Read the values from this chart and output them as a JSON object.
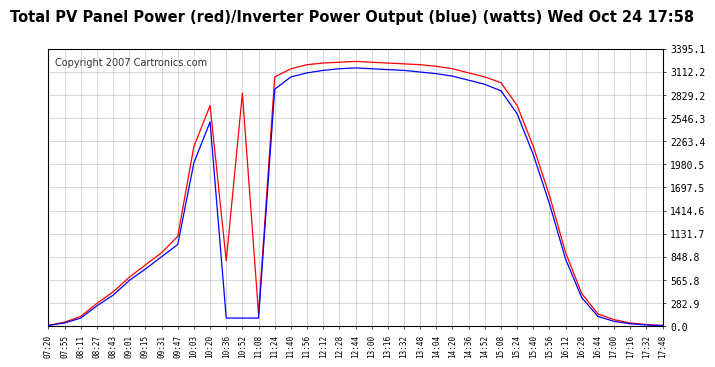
{
  "title": "Total PV Panel Power (red)/Inverter Power Output (blue) (watts) Wed Oct 24 17:58",
  "copyright": "Copyright 2007 Cartronics.com",
  "ylabel_values": [
    0.0,
    282.9,
    565.8,
    848.8,
    1131.7,
    1414.6,
    1697.5,
    1980.5,
    2263.4,
    2546.3,
    2829.2,
    3112.2,
    3395.1
  ],
  "ymax": 3395.1,
  "ymin": 0.0,
  "x_labels": [
    "07:20",
    "07:55",
    "08:11",
    "08:27",
    "08:43",
    "09:01",
    "09:15",
    "09:31",
    "09:47",
    "10:03",
    "10:20",
    "10:36",
    "10:52",
    "11:08",
    "11:24",
    "11:40",
    "11:56",
    "12:12",
    "12:28",
    "12:44",
    "13:00",
    "13:16",
    "13:32",
    "13:48",
    "14:04",
    "14:20",
    "14:36",
    "14:52",
    "15:08",
    "15:24",
    "15:40",
    "15:56",
    "16:12",
    "16:28",
    "16:44",
    "17:00",
    "17:16",
    "17:32",
    "17:48"
  ],
  "background_color": "#ffffff",
  "plot_bg_color": "#ffffff",
  "grid_color": "#aaaaaa",
  "red_color": "#ff0000",
  "blue_color": "#0000ff",
  "title_fontsize": 10.5,
  "copyright_fontsize": 7,
  "pv_vals": [
    10,
    50,
    120,
    280,
    420,
    600,
    750,
    900,
    1100,
    2200,
    2700,
    800,
    2850,
    150,
    3050,
    3150,
    3200,
    3220,
    3230,
    3240,
    3230,
    3220,
    3210,
    3200,
    3180,
    3150,
    3100,
    3050,
    2980,
    2700,
    2200,
    1600,
    900,
    400,
    150,
    80,
    40,
    20,
    10
  ],
  "inv_vals": [
    10,
    40,
    100,
    250,
    380,
    560,
    700,
    850,
    1000,
    2000,
    2500,
    100,
    100,
    100,
    2900,
    3050,
    3100,
    3130,
    3150,
    3160,
    3150,
    3140,
    3130,
    3110,
    3090,
    3060,
    3010,
    2960,
    2880,
    2600,
    2100,
    1500,
    820,
    350,
    120,
    60,
    30,
    15,
    8
  ]
}
